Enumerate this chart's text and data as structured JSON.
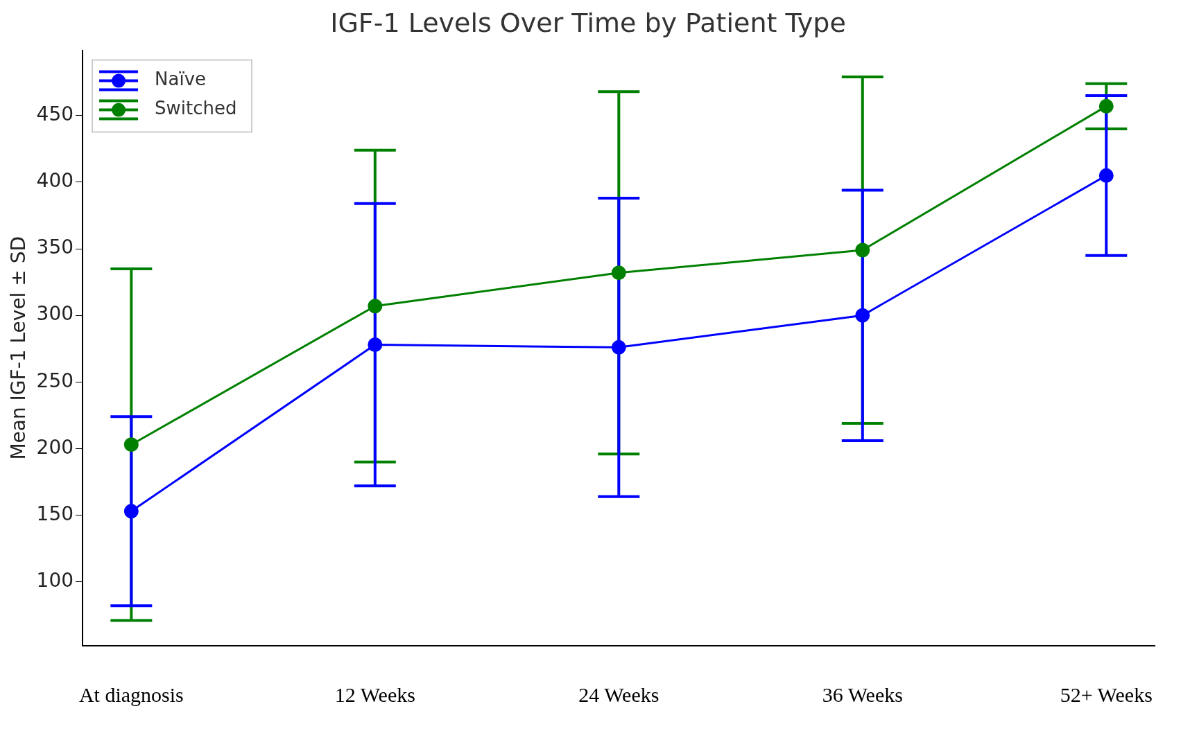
{
  "chart_data": {
    "type": "line",
    "title": "IGF-1 Levels Over Time by Patient Type",
    "ylabel": "Mean IGF-1 Level ± SD",
    "categories": [
      "At diagnosis",
      "12 Weeks",
      "24 Weeks",
      "36 Weeks",
      "52+ Weeks"
    ],
    "series": [
      {
        "name": "Naïve",
        "color": "#0000ff",
        "values": [
          153,
          278,
          276,
          300,
          405
        ],
        "errors": [
          71,
          106,
          112,
          94,
          60
        ]
      },
      {
        "name": "Switched",
        "color": "#008000",
        "values": [
          203,
          307,
          332,
          349,
          457
        ],
        "errors": [
          132,
          117,
          136,
          130,
          17
        ]
      }
    ],
    "ylim": [
      52,
      499
    ],
    "yticks": [
      100,
      150,
      200,
      250,
      300,
      350,
      400,
      450
    ],
    "grid": false,
    "legend": "top left",
    "marker": "circle",
    "line_style": "solid"
  }
}
